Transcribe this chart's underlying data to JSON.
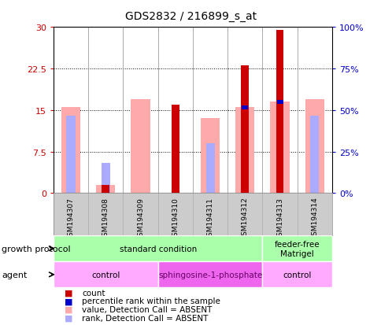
{
  "title": "GDS2832 / 216899_s_at",
  "samples": [
    "GSM194307",
    "GSM194308",
    "GSM194309",
    "GSM194310",
    "GSM194311",
    "GSM194312",
    "GSM194313",
    "GSM194314"
  ],
  "count_values": [
    0,
    1.5,
    0,
    16,
    0,
    23,
    29.5,
    0
  ],
  "percentile_rank": [
    null,
    null,
    null,
    null,
    null,
    15.5,
    16.5,
    null
  ],
  "value_absent": [
    15.5,
    1.5,
    17,
    0,
    13.5,
    15.5,
    16.5,
    17
  ],
  "rank_absent": [
    14,
    5.5,
    null,
    null,
    9,
    null,
    null,
    14
  ],
  "ylim_left": [
    0,
    30
  ],
  "ylim_right": [
    0,
    100
  ],
  "yticks_left": [
    0,
    7.5,
    15,
    22.5,
    30
  ],
  "yticks_right": [
    0,
    25,
    50,
    75,
    100
  ],
  "ytick_labels_left": [
    "0",
    "7.5",
    "15",
    "22.5",
    "30"
  ],
  "ytick_labels_right": [
    "0%",
    "25%",
    "50%",
    "75%",
    "100%"
  ],
  "color_count": "#cc0000",
  "color_percentile": "#0000cc",
  "color_value_absent": "#ffaaaa",
  "color_rank_absent": "#aaaaff",
  "growth_protocol_groups": [
    {
      "label": "standard condition",
      "start": 0,
      "end": 6,
      "color": "#aaffaa"
    },
    {
      "label": "feeder-free\nMatrigel",
      "start": 6,
      "end": 8,
      "color": "#aaffaa"
    }
  ],
  "agent_groups": [
    {
      "label": "control",
      "start": 0,
      "end": 3,
      "color": "#ffaaff",
      "text_color": "#000000"
    },
    {
      "label": "sphingosine-1-phosphate",
      "start": 3,
      "end": 6,
      "color": "#ee66ee",
      "text_color": "#660066"
    },
    {
      "label": "control",
      "start": 6,
      "end": 8,
      "color": "#ffaaff",
      "text_color": "#000000"
    }
  ],
  "legend_items": [
    {
      "color": "#cc0000",
      "label": "count"
    },
    {
      "color": "#0000cc",
      "label": "percentile rank within the sample"
    },
    {
      "color": "#ffaaaa",
      "label": "value, Detection Call = ABSENT"
    },
    {
      "color": "#aaaaff",
      "label": "rank, Detection Call = ABSENT"
    }
  ],
  "bg_color": "#ffffff",
  "left_label_color": "#cc0000",
  "right_label_color": "#0000cc",
  "sample_bg_color": "#cccccc"
}
